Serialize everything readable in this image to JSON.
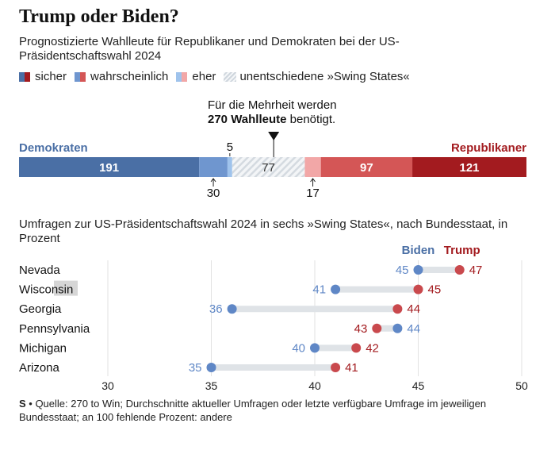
{
  "title": "Trump oder Biden?",
  "subtitle": "Prognostizierte Wahlleute für Republikaner und Demokraten bei der US-Präsidentschaftswahl 2024",
  "legend": {
    "items": [
      "sicher",
      "wahrscheinlich",
      "eher",
      "unentschiedene »Swing States«"
    ]
  },
  "majority": {
    "line1": "Für die Mehrheit werden",
    "bold": "270 Wahlleute",
    "rest": " benötigt."
  },
  "colors": {
    "dem_safe": "#4a6fa5",
    "dem_likely": "#6f96cf",
    "dem_lean": "#9fc3ec",
    "rep_safe": "#a31b1f",
    "rep_likely": "#d45656",
    "rep_lean": "#f2a7a7",
    "biden_dot": "#5f87c6",
    "trump_dot": "#c9494d",
    "dem_text": "#4a6fa5",
    "rep_text": "#a31b1f",
    "connector": "#dfe3e7"
  },
  "chart_data": [
    {
      "type": "bar",
      "title": "Prognostizierte Wahlleute",
      "party_left": "Demokraten",
      "party_right": "Republikaner",
      "total": 538,
      "majority": 270,
      "segments": [
        {
          "name": "Demokraten sicher",
          "value": 191,
          "label": "191",
          "label_pos": "inside"
        },
        {
          "name": "Demokraten wahrscheinlich",
          "value": 30,
          "label": "30",
          "label_pos": "below"
        },
        {
          "name": "Demokraten eher",
          "value": 5,
          "label": "5",
          "label_pos": "above"
        },
        {
          "name": "unentschiedene Swing States",
          "value": 77,
          "label": "77",
          "label_pos": "inside"
        },
        {
          "name": "Republikaner eher",
          "value": 17,
          "label": "17",
          "label_pos": "below"
        },
        {
          "name": "Republikaner wahrscheinlich",
          "value": 97,
          "label": "97",
          "label_pos": "inside"
        },
        {
          "name": "Republikaner sicher",
          "value": 121,
          "label": "121",
          "label_pos": "inside"
        }
      ]
    },
    {
      "type": "scatter",
      "title": "Umfragen zur US-Präsidentschaftswahl 2024 in sechs »Swing States«, nach Bundesstaat, in Prozent",
      "series_names": [
        "Biden",
        "Trump"
      ],
      "xlim": [
        30,
        50
      ],
      "xticks": [
        30,
        35,
        40,
        45,
        50
      ],
      "states": [
        {
          "state": "Nevada",
          "biden": 45,
          "trump": 47
        },
        {
          "state": "Wisconsin",
          "biden": 41,
          "trump": 45
        },
        {
          "state": "Georgia",
          "biden": 36,
          "trump": 44
        },
        {
          "state": "Pennsylvania",
          "biden": 44,
          "trump": 43
        },
        {
          "state": "Michigan",
          "biden": 40,
          "trump": 42
        },
        {
          "state": "Arizona",
          "biden": 35,
          "trump": 41
        }
      ]
    }
  ],
  "footer": {
    "logo": "S",
    "text": " • Quelle: 270 to Win; Durchschnitte aktueller Umfragen oder letzte verfügbare Umfrage im jeweiligen Bundesstaat; an 100 fehlende Prozent: andere"
  }
}
